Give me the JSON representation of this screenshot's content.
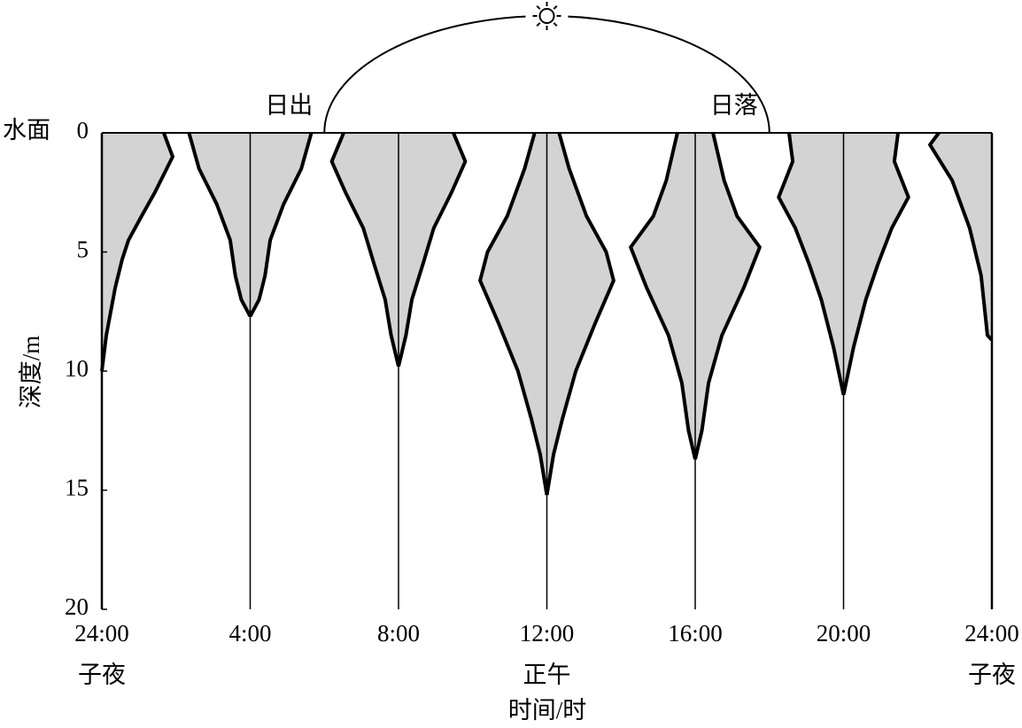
{
  "chart_data": {
    "type": "kite",
    "xlabel": "时间/时",
    "ylabel": "深度/m",
    "surface_label": "水面",
    "xlim": [
      0,
      24
    ],
    "xticks": [
      {
        "value": 0,
        "label": "24:00"
      },
      {
        "value": 4,
        "label": "4:00"
      },
      {
        "value": 8,
        "label": "8:00"
      },
      {
        "value": 12,
        "label": "12:00"
      },
      {
        "value": 16,
        "label": "16:00"
      },
      {
        "value": 20,
        "label": "20:00"
      },
      {
        "value": 24,
        "label": "24:00"
      }
    ],
    "x_sublabels": [
      {
        "value": 0,
        "label": "子夜"
      },
      {
        "value": 12,
        "label": "正午"
      },
      {
        "value": 24,
        "label": "子夜"
      }
    ],
    "ylim": [
      0,
      20
    ],
    "yticks": [
      0,
      5,
      10,
      15,
      20
    ],
    "y_inverted": true,
    "annotations": [
      {
        "text": "日出",
        "x": 6
      },
      {
        "text": "日落",
        "x": 18
      }
    ],
    "fill_color": "#d3d3d3",
    "line_color": "#000000",
    "series": [
      {
        "x": 0,
        "side": "right",
        "depths": [
          0,
          1,
          2.5,
          3.5,
          4.5,
          5.3,
          6.5,
          8.5,
          10
        ],
        "widths": [
          1.67,
          1.91,
          1.43,
          1.07,
          0.72,
          0.55,
          0.36,
          0.12,
          0
        ]
      },
      {
        "x": 4,
        "side": "both",
        "depths": [
          0,
          1.5,
          3,
          4.5,
          6,
          7,
          7.7
        ],
        "widths": [
          1.65,
          1.38,
          0.9,
          0.54,
          0.4,
          0.24,
          0
        ]
      },
      {
        "x": 8,
        "side": "both",
        "depths": [
          0,
          1.2,
          2.5,
          4,
          5.5,
          7,
          8.5,
          9.8
        ],
        "widths": [
          1.48,
          1.8,
          1.43,
          0.95,
          0.66,
          0.36,
          0.2,
          0
        ]
      },
      {
        "x": 12,
        "side": "both",
        "depths": [
          0,
          1.5,
          3.5,
          5,
          6.2,
          8,
          10,
          12,
          13.5,
          15.2
        ],
        "widths": [
          0.33,
          0.6,
          1.07,
          1.6,
          1.8,
          1.3,
          0.78,
          0.42,
          0.18,
          0
        ]
      },
      {
        "x": 16,
        "side": "both",
        "depths": [
          0,
          2,
          3.5,
          4.8,
          6.5,
          8.5,
          10.5,
          12.5,
          13.7
        ],
        "widths": [
          0.48,
          0.78,
          1.13,
          1.74,
          1.31,
          0.72,
          0.36,
          0.18,
          0
        ]
      },
      {
        "x": 20,
        "side": "both",
        "depths": [
          0,
          1.2,
          2.7,
          4,
          5.5,
          7,
          9,
          11
        ],
        "widths": [
          1.47,
          1.37,
          1.75,
          1.3,
          0.93,
          0.6,
          0.27,
          0
        ]
      },
      {
        "x": 24,
        "side": "left",
        "depths": [
          0,
          0.5,
          2,
          4,
          6,
          8.5,
          8.7
        ],
        "widths": [
          1.43,
          1.67,
          1.07,
          0.6,
          0.29,
          0.12,
          0
        ]
      }
    ]
  }
}
